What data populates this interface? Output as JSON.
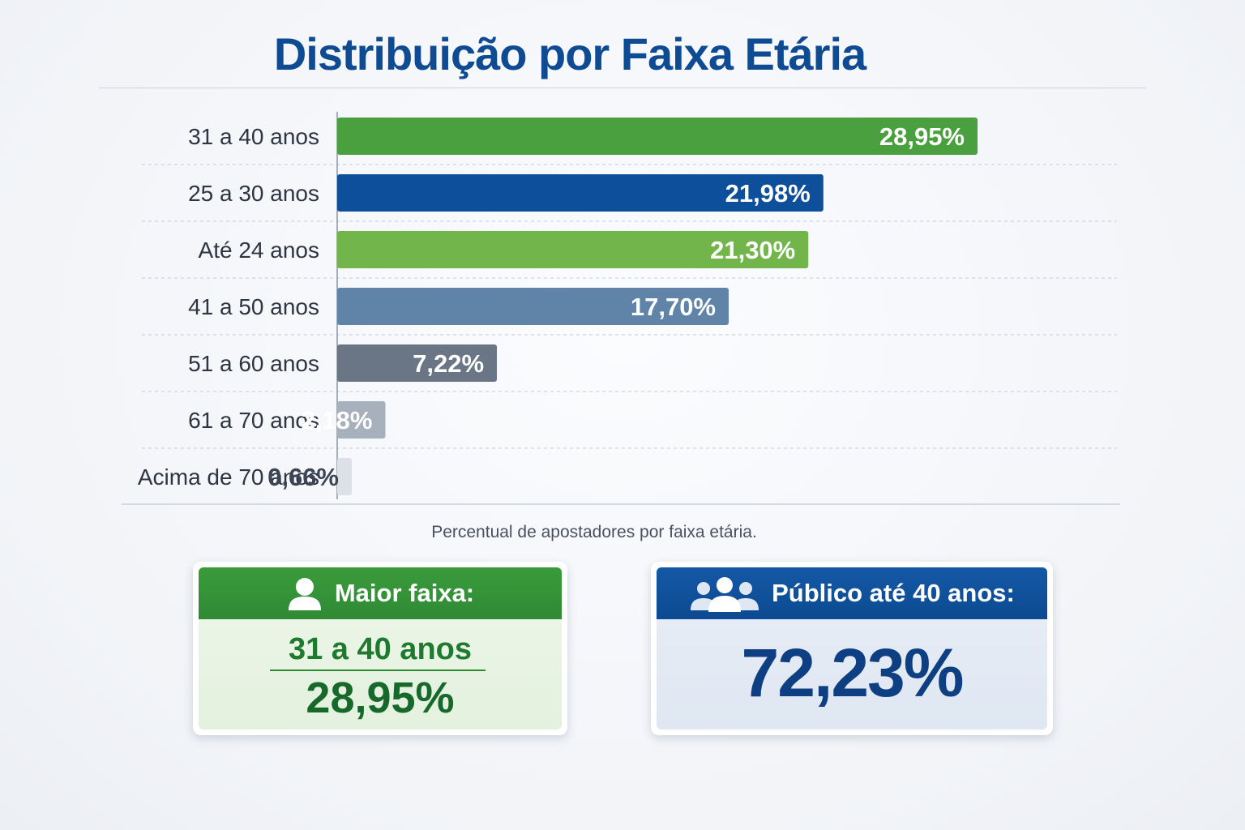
{
  "title": "Distribuição por Faixa Etária",
  "caption": "Percentual de apostadores por faixa etária.",
  "chart_data": {
    "type": "bar",
    "orientation": "horizontal",
    "categories": [
      "31 a 40 anos",
      "25 a 30 anos",
      "Até 24 anos",
      "41 a 50 anos",
      "51 a 60 anos",
      "61 a 70 anos",
      "Acima de 70 anos"
    ],
    "values": [
      28.95,
      21.98,
      21.3,
      17.7,
      7.22,
      2.18,
      0.66
    ],
    "value_labels": [
      "28,95%",
      "21,98%",
      "21,30%",
      "17,70%",
      "7,22%",
      "2,18%",
      "0,66%"
    ],
    "colors": [
      "#4a9f3e",
      "#0d4f9a",
      "#72b54a",
      "#5f84a8",
      "#6a7585",
      "#a7b1be",
      "#dde1e7"
    ],
    "label_colors": [
      "#ffffff",
      "#ffffff",
      "#ffffff",
      "#ffffff",
      "#ffffff",
      "#ffffff",
      "#3c4554"
    ],
    "grid": "dashed row separators"
  },
  "cards": {
    "largest": {
      "header": "Maior faixa:",
      "icon": "person-icon",
      "range": "31 a 40 anos",
      "percent": "28,95%",
      "color": "#2f8a34"
    },
    "under40": {
      "header": "Público até 40 anos:",
      "icon": "group-icon",
      "percent": "72,23%",
      "color": "#0c4a91"
    }
  }
}
